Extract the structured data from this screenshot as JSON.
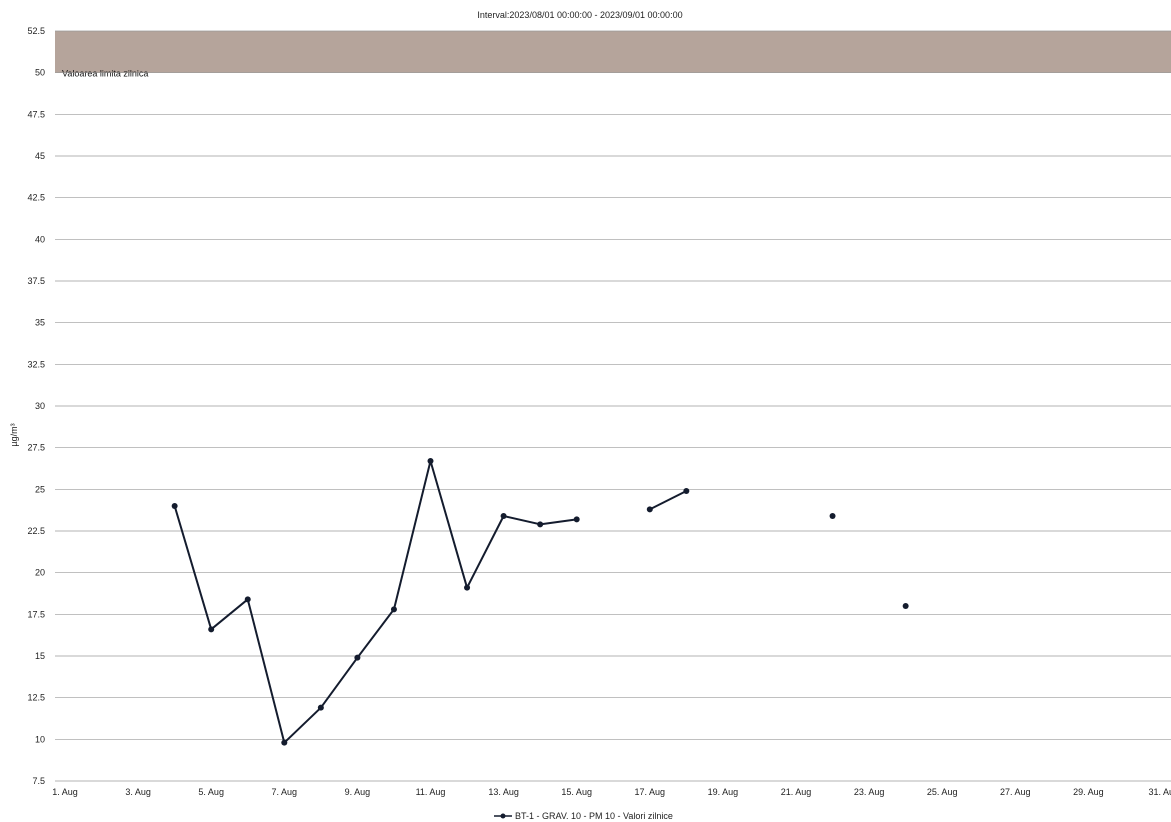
{
  "chart_data": {
    "type": "line",
    "title": "Interval:2023/08/01 00:00:00 - 2023/09/01 00:00:00",
    "xlabel": "",
    "ylabel": "µg/m³",
    "x_ticks": [
      "1. Aug",
      "3. Aug",
      "5. Aug",
      "7. Aug",
      "9. Aug",
      "11. Aug",
      "13. Aug",
      "15. Aug",
      "17. Aug",
      "19. Aug",
      "21. Aug",
      "23. Aug",
      "25. Aug",
      "27. Aug",
      "29. Aug",
      "31. Au"
    ],
    "x_range": [
      "2023-08-01",
      "2023-08-31"
    ],
    "ylim": [
      7.5,
      52.5
    ],
    "y_ticks": [
      "52.5",
      "50",
      "47.5",
      "45",
      "42.5",
      "40",
      "37.5",
      "35",
      "32.5",
      "30",
      "27.5",
      "25",
      "22.5",
      "20",
      "17.5",
      "15",
      "12.5",
      "10",
      "7.5"
    ],
    "grid": true,
    "bands": [
      {
        "from": 50,
        "to": 52.5,
        "label": "Valoarea limita zilnica",
        "color": "#b5a49b"
      }
    ],
    "series": [
      {
        "name": "BT-1 - GRAV. 10 - PM 10 - Valori zilnice",
        "color": "#141c2e",
        "points": [
          {
            "x": "2023-08-04",
            "y": 24.0
          },
          {
            "x": "2023-08-05",
            "y": 16.6
          },
          {
            "x": "2023-08-06",
            "y": 18.4
          },
          {
            "x": "2023-08-07",
            "y": 9.8
          },
          {
            "x": "2023-08-08",
            "y": 11.9
          },
          {
            "x": "2023-08-09",
            "y": 14.9
          },
          {
            "x": "2023-08-10",
            "y": 17.8
          },
          {
            "x": "2023-08-11",
            "y": 26.7
          },
          {
            "x": "2023-08-12",
            "y": 19.1
          },
          {
            "x": "2023-08-13",
            "y": 23.4
          },
          {
            "x": "2023-08-14",
            "y": 22.9
          },
          {
            "x": "2023-08-15",
            "y": 23.2
          },
          {
            "x": "2023-08-16",
            "y": null
          },
          {
            "x": "2023-08-17",
            "y": 23.8
          },
          {
            "x": "2023-08-18",
            "y": 24.9
          },
          {
            "x": "2023-08-19",
            "y": null
          },
          {
            "x": "2023-08-22",
            "y": 23.4
          },
          {
            "x": "2023-08-23",
            "y": null
          },
          {
            "x": "2023-08-24",
            "y": 18.0
          }
        ]
      }
    ],
    "legend": "bottom-center"
  }
}
